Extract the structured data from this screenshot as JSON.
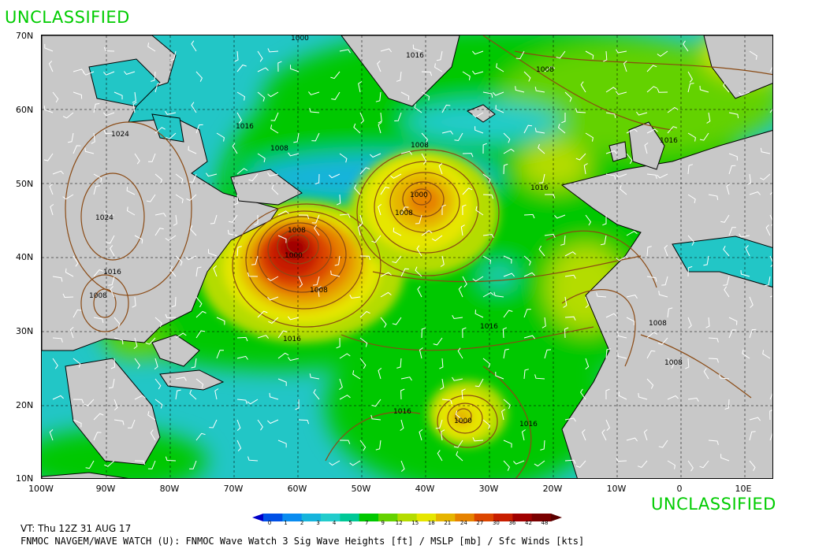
{
  "classification": {
    "top": "UNCLASSIFIED",
    "bottom": "UNCLASSIFIED"
  },
  "lat_labels": [
    "70N",
    "60N",
    "50N",
    "40N",
    "30N",
    "20N",
    "10N"
  ],
  "lon_labels": [
    "100W",
    "90W",
    "80W",
    "70W",
    "60W",
    "50W",
    "40W",
    "30W",
    "20W",
    "10W",
    "0",
    "10E"
  ],
  "isobar_labels": [
    "1000",
    "1016",
    "1008",
    "1016",
    "1008",
    "1024",
    "1016",
    "1008",
    "1000",
    "1008",
    "1016",
    "1024",
    "1008",
    "1000",
    "1008",
    "1016",
    "1016",
    "1016",
    "1008",
    "1000",
    "1016",
    "1008",
    "1016",
    "1008"
  ],
  "colorbar": {
    "labels": [
      "0",
      "1",
      "2",
      "3",
      "4",
      "5",
      "7",
      "9",
      "12",
      "15",
      "18",
      "21",
      "24",
      "27",
      "30",
      "36",
      "42",
      "48"
    ],
    "colors": [
      "#0000c8",
      "#0050e6",
      "#0a8cf0",
      "#16b4dc",
      "#22cccc",
      "#00c896",
      "#00c800",
      "#64d200",
      "#b4dc00",
      "#e6e600",
      "#e6b400",
      "#e68200",
      "#dc4600",
      "#c81e00",
      "#a00000",
      "#7a0000",
      "#5a0000"
    ]
  },
  "footer": {
    "valid_time": "VT: Thu 12Z 31 AUG 17",
    "product": "FNMOC NAVGEM/WAVE WATCH (U): FNMOC Wave Watch 3 Sig Wave Heights [ft] / MSLP [mb] / Sfc Winds [kts]"
  }
}
